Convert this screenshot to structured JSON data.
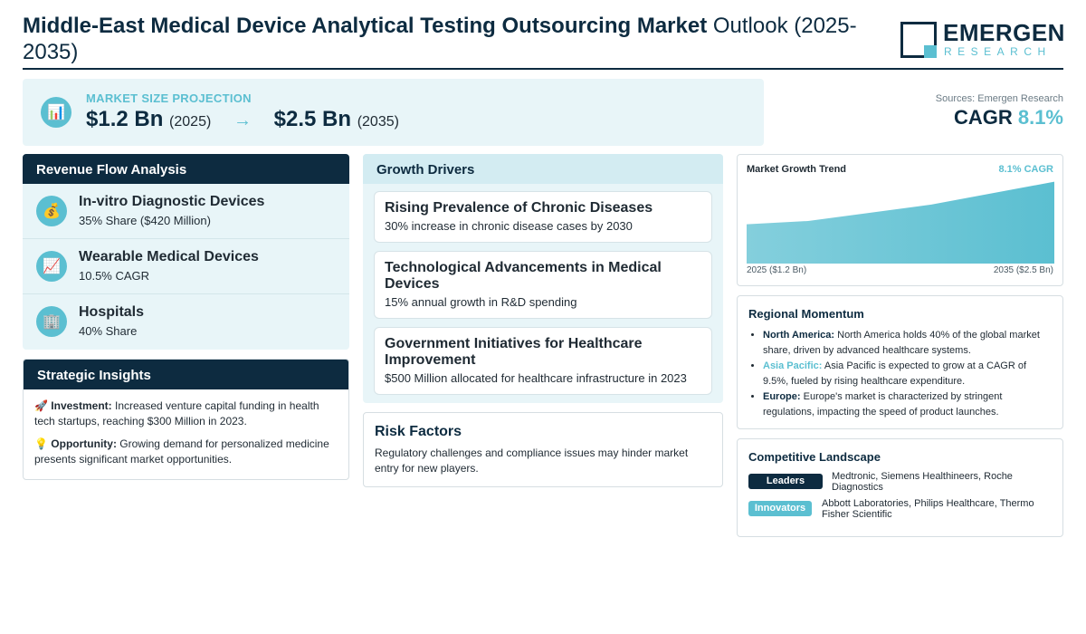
{
  "header": {
    "title_bold": "Middle-East Medical Device Analytical Testing Outsourcing Market",
    "title_light": "Outlook (2025-2035)",
    "logo_main": "EMERGEN",
    "logo_sub": "RESEARCH"
  },
  "projection": {
    "label": "MARKET SIZE PROJECTION",
    "icon": "bar-chart-icon",
    "start_value": "$1.2 Bn",
    "start_year": "(2025)",
    "arrow": "→",
    "end_value": "$2.5 Bn",
    "end_year": "(2035)",
    "sources": "Sources: Emergen Research",
    "cagr_label": "CAGR",
    "cagr_value": "8.1%"
  },
  "revenue": {
    "heading": "Revenue Flow Analysis",
    "items": [
      {
        "icon": "money-bag-icon",
        "glyph": "💰",
        "title": "In-vitro Diagnostic Devices",
        "sub": "35% Share ($420 Million)"
      },
      {
        "icon": "trend-up-icon",
        "glyph": "📈",
        "title": "Wearable Medical Devices",
        "sub": "10.5% CAGR"
      },
      {
        "icon": "hospital-icon",
        "glyph": "🏢",
        "title": "Hospitals",
        "sub": "40% Share"
      }
    ]
  },
  "insights": {
    "heading": "Strategic Insights",
    "items": [
      {
        "icon": "rocket-icon",
        "glyph": "🚀",
        "label": "Investment:",
        "text": "Increased venture capital funding in health tech startups, reaching $300 Million in 2023."
      },
      {
        "icon": "lightbulb-icon",
        "glyph": "💡",
        "label": "Opportunity:",
        "text": "Growing demand for personalized medicine presents significant market opportunities."
      }
    ]
  },
  "growth": {
    "heading": "Growth Drivers",
    "items": [
      {
        "title": "Rising Prevalence of Chronic Diseases",
        "sub": "30% increase in chronic disease cases by 2030"
      },
      {
        "title": "Technological Advancements in Medical Devices",
        "sub": "15% annual growth in R&D spending"
      },
      {
        "title": "Government Initiatives for Healthcare Improvement",
        "sub": "$500 Million allocated for healthcare infrastructure in 2023"
      }
    ]
  },
  "risk": {
    "heading": "Risk Factors",
    "text": "Regulatory challenges and compliance issues may hinder market entry for new players."
  },
  "chart_data": {
    "type": "area",
    "title": "Market Growth Trend",
    "annotation": "8.1% CAGR",
    "x": [
      2025,
      2027,
      2031,
      2035
    ],
    "values": [
      1.2,
      1.3,
      1.8,
      2.5
    ],
    "ylim": [
      0,
      2.6
    ],
    "start_label": "2025 ($1.2 Bn)",
    "end_label": "2035 ($2.5 Bn)",
    "color": "#5bbfd1",
    "grid": false
  },
  "regional": {
    "heading": "Regional Momentum",
    "items": [
      {
        "label": "North America:",
        "text": "North America holds 40% of the global market share, driven by advanced healthcare systems.",
        "accent": false
      },
      {
        "label": "Asia Pacific:",
        "text": "Asia Pacific is expected to grow at a CAGR of 9.5%, fueled by rising healthcare expenditure.",
        "accent": true
      },
      {
        "label": "Europe:",
        "text": "Europe's market is characterized by stringent regulations, impacting the speed of product launches.",
        "accent": false
      }
    ]
  },
  "competitive": {
    "heading": "Competitive Landscape",
    "rows": [
      {
        "badge": "Leaders",
        "text": "Medtronic, Siemens Healthineers, Roche Diagnostics"
      },
      {
        "badge": "Innovators",
        "text": "Abbott Laboratories, Philips Healthcare, Thermo Fisher Scientific"
      }
    ]
  },
  "colors": {
    "navy": "#0d2b40",
    "teal": "#5bbfd1",
    "panel": "#e8f5f8"
  }
}
